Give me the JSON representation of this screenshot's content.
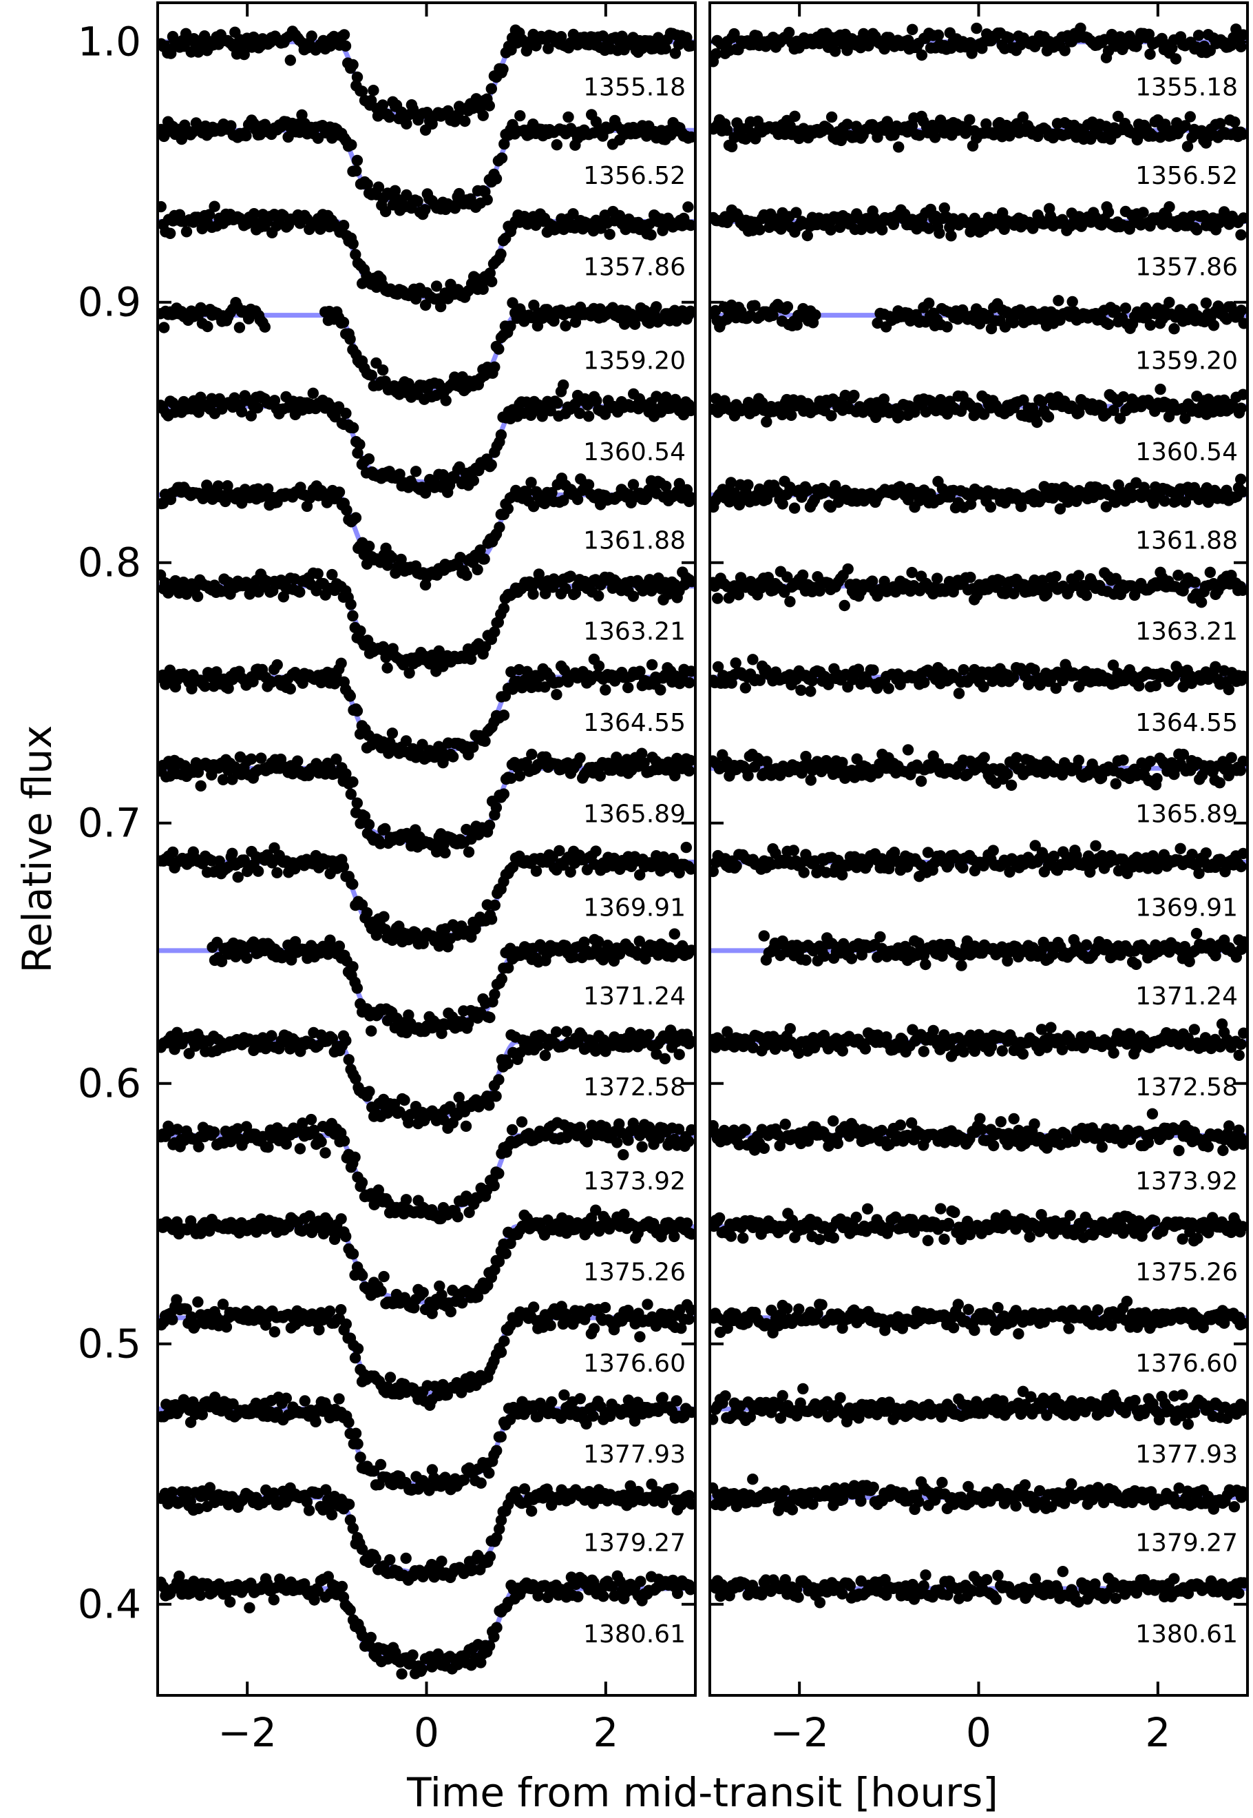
{
  "chart_data": {
    "type": "scatter",
    "xlabel": "Time from mid-transit [hours]",
    "ylabel": "Relative flux",
    "xlim": [
      -3.0,
      3.0
    ],
    "ylim": [
      0.365,
      1.015
    ],
    "x_ticks": [
      -2,
      0,
      2
    ],
    "x_tick_labels": [
      "−2",
      "0",
      "2"
    ],
    "y_ticks": [
      0.4,
      0.5,
      0.6,
      0.7,
      0.8,
      0.9,
      1.0
    ],
    "y_tick_labels": [
      "0.4",
      "0.5",
      "0.6",
      "0.7",
      "0.8",
      "0.9",
      "1.0"
    ],
    "grid": false,
    "legend": "none",
    "colors": {
      "model": "#8c8cff",
      "points": "#000000"
    },
    "transit_model": {
      "depth": 0.029,
      "total_duration_hours": 2.0,
      "flat_bottom_halfwidth_hours": 0.62
    },
    "panels": [
      {
        "name": "left",
        "description_shown": "light curves with transit",
        "has_transit": true
      },
      {
        "name": "right",
        "description_shown": "residuals",
        "has_transit": false
      }
    ],
    "series": [
      {
        "epoch": "1355.18",
        "baseline": 1.0,
        "gap": null
      },
      {
        "epoch": "1356.52",
        "baseline": 0.966,
        "gap": null
      },
      {
        "epoch": "1357.86",
        "baseline": 0.931,
        "gap": null
      },
      {
        "epoch": "1359.20",
        "baseline": 0.895,
        "gap": [
          -1.8,
          -1.15
        ]
      },
      {
        "epoch": "1360.54",
        "baseline": 0.86,
        "gap": null
      },
      {
        "epoch": "1361.88",
        "baseline": 0.826,
        "gap": null
      },
      {
        "epoch": "1363.21",
        "baseline": 0.791,
        "gap": null
      },
      {
        "epoch": "1364.55",
        "baseline": 0.756,
        "gap": null
      },
      {
        "epoch": "1365.89",
        "baseline": 0.721,
        "gap": null
      },
      {
        "epoch": "1369.91",
        "baseline": 0.685,
        "gap": null
      },
      {
        "epoch": "1371.24",
        "baseline": 0.651,
        "gap": [
          -3.0,
          -2.4
        ]
      },
      {
        "epoch": "1372.58",
        "baseline": 0.616,
        "gap": null
      },
      {
        "epoch": "1373.92",
        "baseline": 0.58,
        "gap": null
      },
      {
        "epoch": "1375.26",
        "baseline": 0.545,
        "gap": null
      },
      {
        "epoch": "1376.60",
        "baseline": 0.51,
        "gap": null
      },
      {
        "epoch": "1377.93",
        "baseline": 0.475,
        "gap": null
      },
      {
        "epoch": "1379.27",
        "baseline": 0.441,
        "gap": null
      },
      {
        "epoch": "1380.61",
        "baseline": 0.406,
        "gap": null
      }
    ]
  }
}
